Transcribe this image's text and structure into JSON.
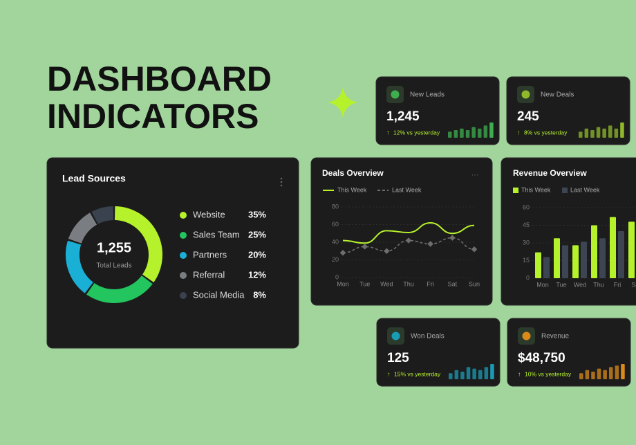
{
  "header": {
    "line1": "DASHBOARD",
    "line2": "INDICATORS"
  },
  "kpis": [
    {
      "label": "New Leads",
      "value": "1,245",
      "change": "12% vs yesterday",
      "color": "#3fae4f",
      "spark": [
        4,
        5,
        6,
        5,
        7,
        6,
        8,
        10
      ]
    },
    {
      "label": "New Deals",
      "value": "245",
      "change": "8% vs yesterday",
      "color": "#8fb82a",
      "spark": [
        4,
        6,
        5,
        7,
        6,
        8,
        6,
        10
      ]
    },
    {
      "label": "Won Deals",
      "value": "125",
      "change": "15% vs yesterday",
      "color": "#1a9bb5",
      "spark": [
        4,
        6,
        5,
        8,
        7,
        6,
        8,
        10
      ]
    },
    {
      "label": "Revenue",
      "value": "$48,750",
      "change": "10% vs yesterday",
      "color": "#d98a1a",
      "spark": [
        4,
        6,
        5,
        7,
        6,
        8,
        9,
        10
      ]
    }
  ],
  "chart_data": [
    {
      "type": "pie",
      "title": "Lead Sources",
      "center_value": "1,255",
      "center_label": "Total Leads",
      "categories": [
        "Website",
        "Sales Team",
        "Partners",
        "Referral",
        "Social Media"
      ],
      "values": [
        35,
        25,
        20,
        12,
        8
      ],
      "value_labels": [
        "35%",
        "25%",
        "20%",
        "12%",
        "8%"
      ],
      "colors": [
        "#b6f22b",
        "#22c55e",
        "#1ab0d6",
        "#7a7d82",
        "#3a4250"
      ]
    },
    {
      "type": "line",
      "title": "Deals Overview",
      "categories": [
        "Mon",
        "Tue",
        "Wed",
        "Thu",
        "Fri",
        "Sat",
        "Sun"
      ],
      "series": [
        {
          "name": "This Week",
          "color": "#b6f22b",
          "values": [
            42,
            39,
            53,
            51,
            62,
            50,
            59
          ]
        },
        {
          "name": "Last Week",
          "color": "#6e6e6e",
          "values": [
            28,
            35,
            30,
            42,
            38,
            45,
            32
          ]
        }
      ],
      "ylim": [
        0,
        80
      ],
      "yticks": [
        0,
        20,
        40,
        60,
        80
      ],
      "grid": true
    },
    {
      "type": "bar",
      "title": "Revenue Overview",
      "categories": [
        "Mon",
        "Tue",
        "Wed",
        "Thu",
        "Fri",
        "Sat"
      ],
      "series": [
        {
          "name": "This Week",
          "color": "#b6f22b",
          "values": [
            22,
            34,
            28,
            45,
            52,
            48
          ]
        },
        {
          "name": "Last Week",
          "color": "#3d4452",
          "values": [
            18,
            28,
            31,
            34,
            40,
            null
          ]
        }
      ],
      "ylim": [
        0,
        60
      ],
      "yticks": [
        0,
        15,
        30,
        45,
        60
      ],
      "grid": true
    }
  ]
}
